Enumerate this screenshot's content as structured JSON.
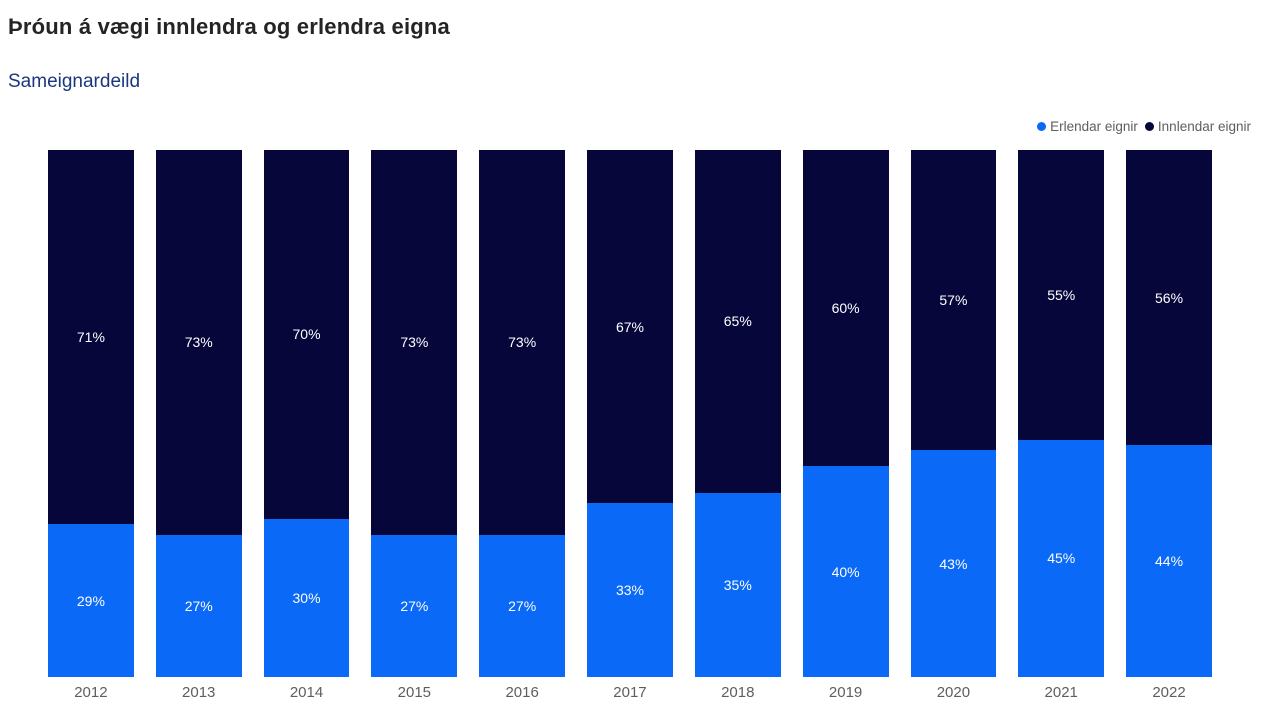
{
  "header": {
    "title": "Þróun á vægi innlendra og erlendra eigna",
    "subtitle": "Sameignardeild"
  },
  "legend": {
    "position": "top-right",
    "items": [
      {
        "label": "Erlendar eignir",
        "color": "#0a69f7"
      },
      {
        "label": "Innlendar eignir",
        "color": "#06063b"
      }
    ]
  },
  "chart_data": {
    "type": "bar",
    "stacked": true,
    "orientation": "vertical",
    "title": "Þróun á vægi innlendra og erlendra eigna",
    "subtitle": "Sameignardeild",
    "categories": [
      "2012",
      "2013",
      "2014",
      "2015",
      "2016",
      "2017",
      "2018",
      "2019",
      "2020",
      "2021",
      "2022"
    ],
    "series": [
      {
        "name": "Erlendar eignir",
        "color": "#0a69f7",
        "stack_position": "bottom",
        "values": [
          29,
          27,
          30,
          27,
          27,
          33,
          35,
          40,
          43,
          45,
          44
        ]
      },
      {
        "name": "Innlendar eignir",
        "color": "#06063b",
        "stack_position": "top",
        "values": [
          71,
          73,
          70,
          73,
          73,
          67,
          65,
          60,
          57,
          55,
          56
        ]
      }
    ],
    "value_suffix": "%",
    "ylim": [
      0,
      100
    ],
    "grid": false,
    "y_axis_visible": false,
    "data_labels": "inside-center",
    "data_label_color": "#ffffff",
    "xlabel": "",
    "ylabel": ""
  },
  "colors": {
    "background": "#ffffff",
    "title_text": "#252423",
    "subtitle_text": "#1a377e",
    "legend_text": "#605e5c",
    "axis_label_text": "#605e5c"
  }
}
